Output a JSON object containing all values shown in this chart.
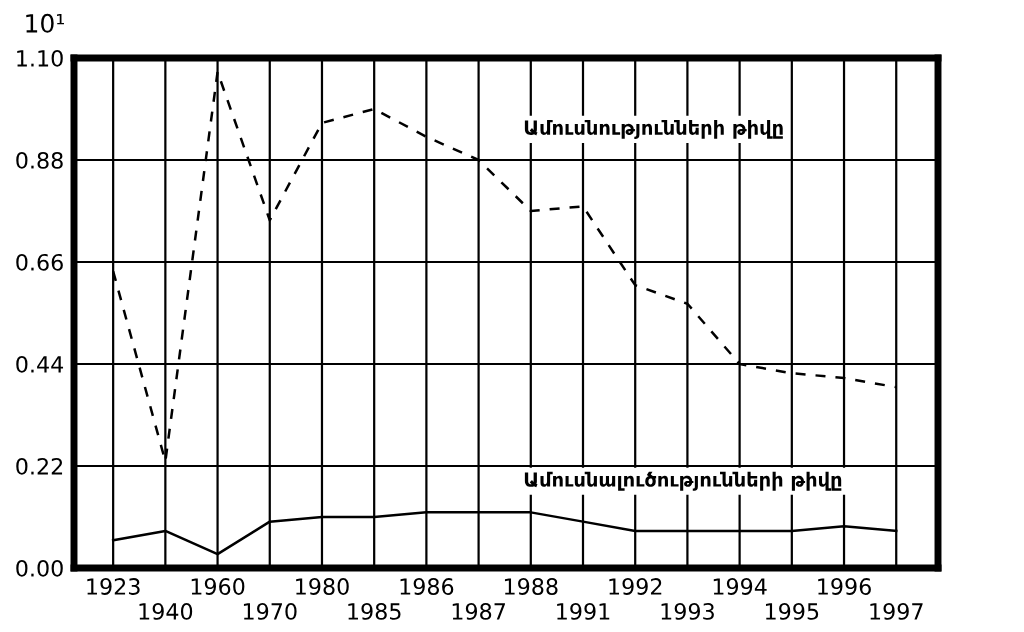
{
  "chart_data": {
    "type": "line",
    "ylabel": "10¹",
    "categories": [
      "1923",
      "1940",
      "1960",
      "1970",
      "1980",
      "1985",
      "1986",
      "1987",
      "1988",
      "1991",
      "1992",
      "1993",
      "1994",
      "1995",
      "1996",
      "1997"
    ],
    "series": [
      {
        "name": "Ամուսնությունների թիվը",
        "color": "#000000",
        "line_style": "dashed",
        "values": [
          0.64,
          0.23,
          1.07,
          0.75,
          0.96,
          0.99,
          0.93,
          0.88,
          0.77,
          0.78,
          0.61,
          0.57,
          0.44,
          0.42,
          0.41,
          0.39
        ]
      },
      {
        "name": "Ամուսնալուծությունների թիվը",
        "color": "#000000",
        "line_style": "solid",
        "values": [
          0.06,
          0.08,
          0.03,
          0.1,
          0.11,
          0.11,
          0.12,
          0.12,
          0.12,
          0.1,
          0.08,
          0.08,
          0.08,
          0.08,
          0.09,
          0.08
        ]
      }
    ],
    "ylim": [
      0,
      1.1
    ],
    "yticks": [
      {
        "value": 0,
        "label": "0.00"
      },
      {
        "value": 0.22,
        "label": "0.22"
      },
      {
        "value": 0.44,
        "label": "0.44"
      },
      {
        "value": 0.66,
        "label": "0.66"
      },
      {
        "value": 0.88,
        "label": "0.88"
      },
      {
        "value": 1.1,
        "label": "1.10"
      }
    ],
    "grid": true,
    "legend": false
  }
}
